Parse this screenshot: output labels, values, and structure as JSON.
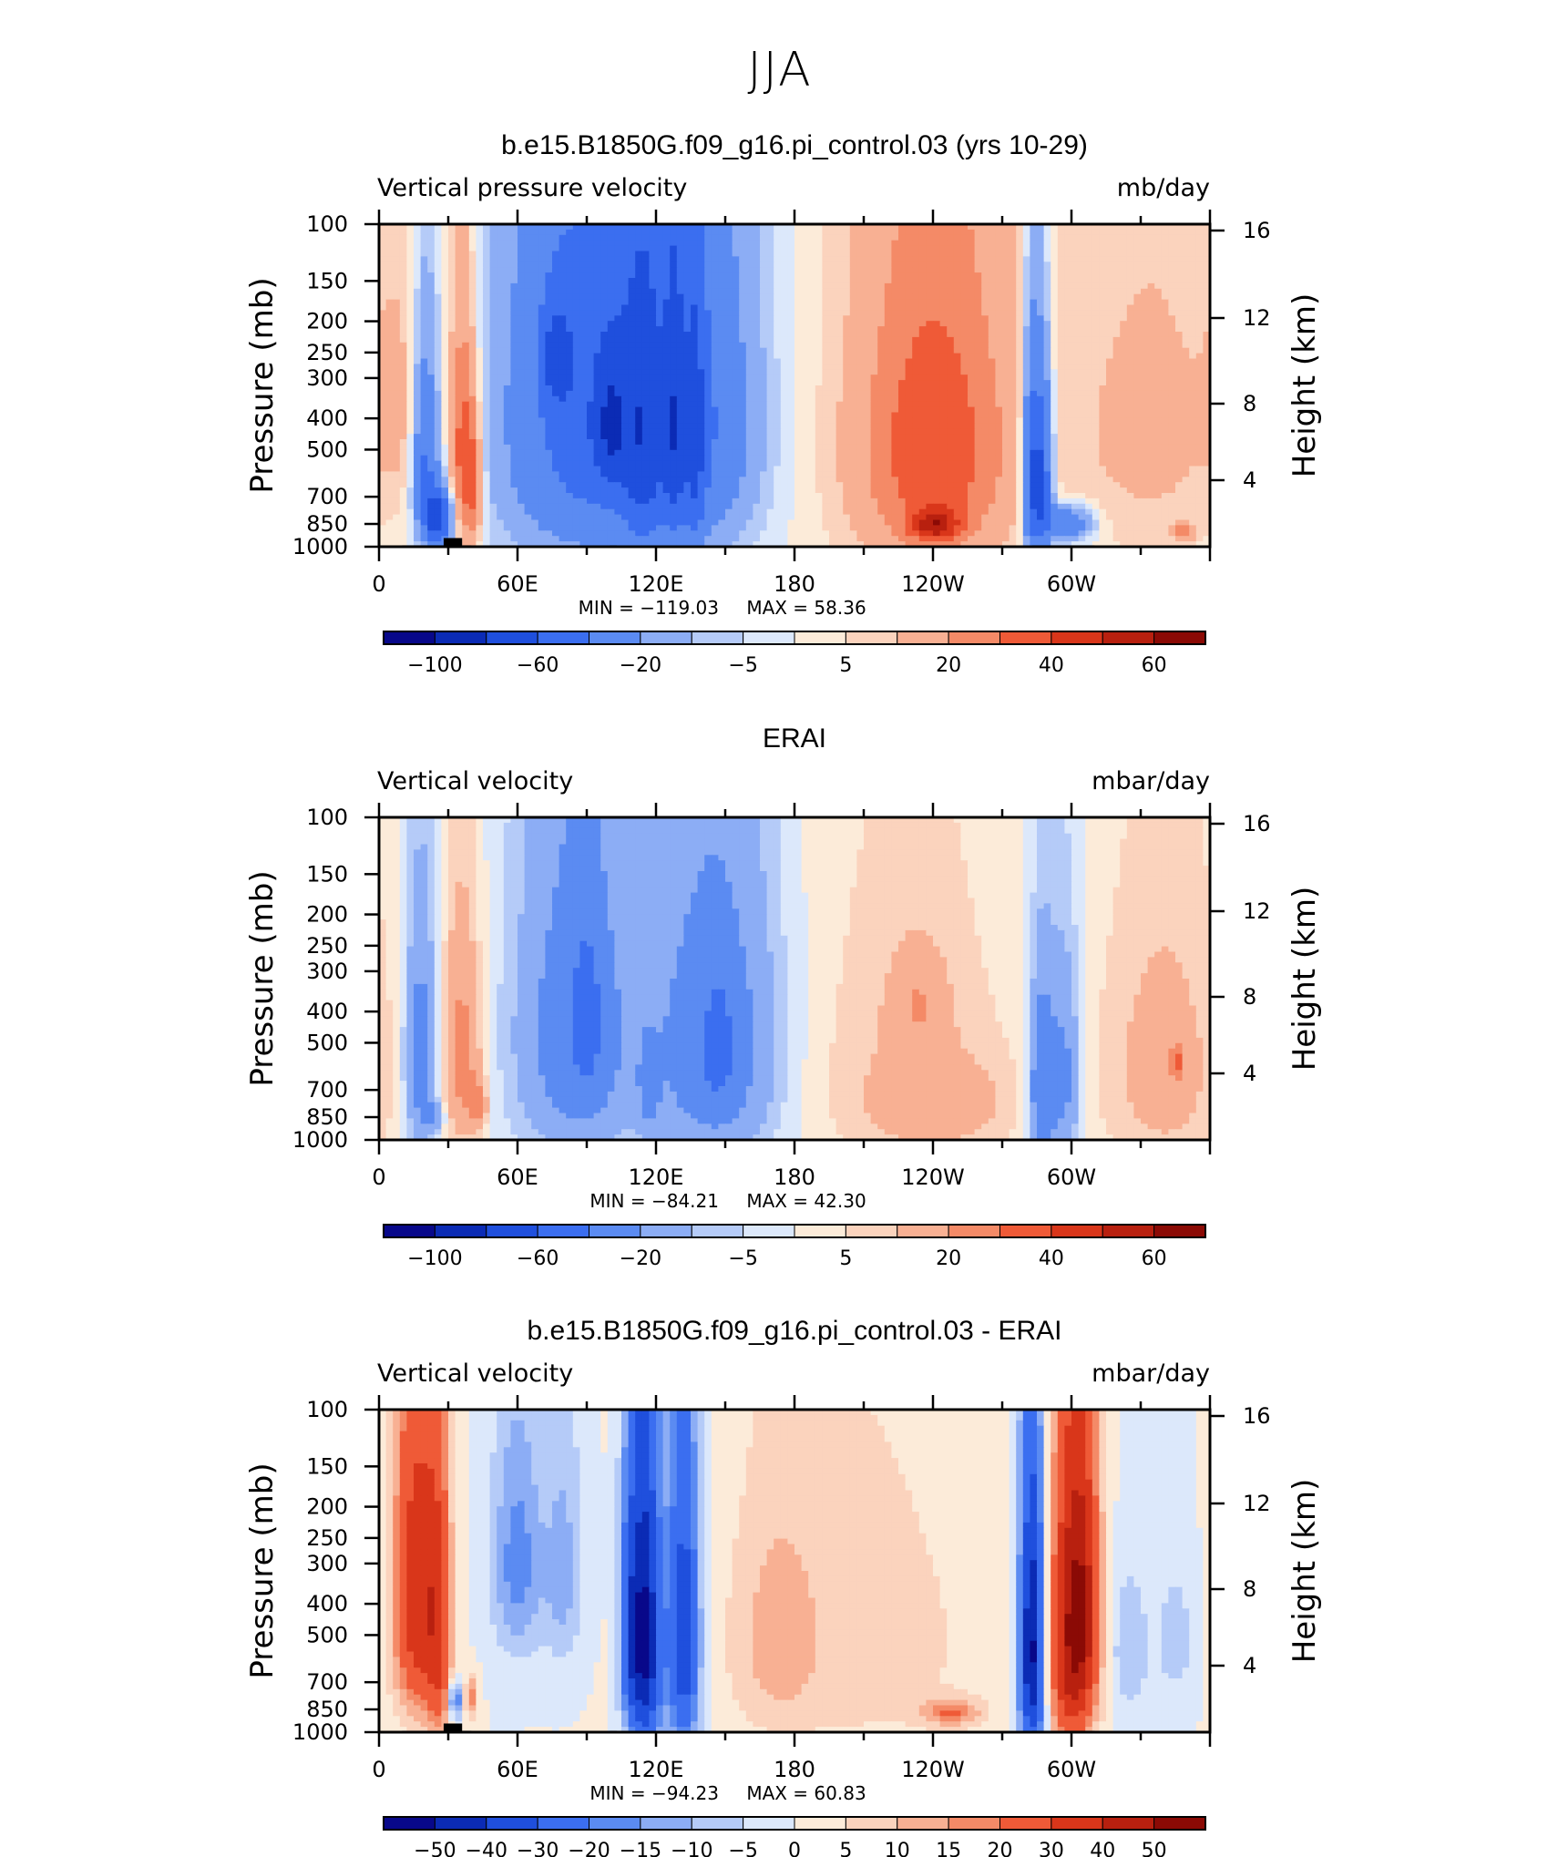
{
  "figure": {
    "suptitle": "JJA"
  },
  "palettes": {
    "diverging": [
      "#08088a",
      "#0b2bb5",
      "#1f4fdd",
      "#3b6ef0",
      "#5b8bf2",
      "#8cadf5",
      "#b5cbf8",
      "#dce8fb",
      "#fcebd9",
      "#fbd3bd",
      "#f8b093",
      "#f48a67",
      "#ef5a37",
      "#d9361a",
      "#b8200f",
      "#8b0a05"
    ]
  },
  "chart_data": [
    {
      "type": "heatmap",
      "title": "b.e15.B1850G.f09_g16.pi_control.03 (yrs 10-29)",
      "left_label": "Vertical pressure velocity",
      "right_label": "mb/day",
      "ylabel": "Pressure (mb)",
      "ylabel_right": "Height (km)",
      "x_ticks": [
        "0",
        "60E",
        "120E",
        "180",
        "120W",
        "60W"
      ],
      "y_ticks": [
        "100",
        "150",
        "200",
        "250",
        "300",
        "400",
        "500",
        "700",
        "850",
        "1000"
      ],
      "y2_ticks": [
        "16",
        "12",
        "8",
        "4"
      ],
      "min_label": "MIN = −119.03",
      "max_label": "MAX = 58.36",
      "colorbar_labels": [
        "−100",
        "−60",
        "−20",
        "−5",
        "5",
        "20",
        "40",
        "60"
      ],
      "fields": [
        {
          "lon": 20,
          "p": 550,
          "sx": 4,
          "sy": 280,
          "v": -45
        },
        {
          "lon": 26,
          "p": 820,
          "sx": 4,
          "sy": 120,
          "v": -70
        },
        {
          "lon": 36,
          "p": 500,
          "sx": 4,
          "sy": 300,
          "v": 35
        },
        {
          "lon": 41,
          "p": 640,
          "sx": 3,
          "sy": 240,
          "v": 25
        },
        {
          "lon": 90,
          "p": 400,
          "sx": 26,
          "sy": 420,
          "v": -50
        },
        {
          "lon": 77,
          "p": 260,
          "sx": 5,
          "sy": 70,
          "v": -35
        },
        {
          "lon": 100,
          "p": 420,
          "sx": 5,
          "sy": 150,
          "v": -30
        },
        {
          "lon": 114,
          "p": 480,
          "sx": 6,
          "sy": 420,
          "v": -25
        },
        {
          "lon": 135,
          "p": 420,
          "sx": 20,
          "sy": 380,
          "v": -40
        },
        {
          "lon": 128,
          "p": 450,
          "sx": 3,
          "sy": 400,
          "v": -25
        },
        {
          "lon": 137,
          "p": 480,
          "sx": 3,
          "sy": 400,
          "v": -25
        },
        {
          "lon": 240,
          "p": 480,
          "sx": 30,
          "sy": 520,
          "v": 22
        },
        {
          "lon": 240,
          "p": 500,
          "sx": 19,
          "sy": 300,
          "v": 18
        },
        {
          "lon": 241,
          "p": 860,
          "sx": 8,
          "sy": 70,
          "v": 35
        },
        {
          "lon": 283,
          "p": 600,
          "sx": 3,
          "sy": 320,
          "v": -60
        },
        {
          "lon": 288,
          "p": 600,
          "sx": 3,
          "sy": 280,
          "v": -50
        },
        {
          "lon": 298,
          "p": 850,
          "sx": 8,
          "sy": 80,
          "v": -40
        },
        {
          "lon": 335,
          "p": 430,
          "sx": 30,
          "sy": 440,
          "v": 12
        },
        {
          "lon": 349,
          "p": 900,
          "sx": 3,
          "sy": 35,
          "v": 25
        },
        {
          "lon": 10,
          "p": 360,
          "sx": 8,
          "sy": 200,
          "v": 8
        }
      ]
    },
    {
      "type": "heatmap",
      "title": "ERAI",
      "left_label": "Vertical velocity",
      "right_label": "mbar/day",
      "ylabel": "Pressure (mb)",
      "ylabel_right": "Height (km)",
      "x_ticks": [
        "0",
        "60E",
        "120E",
        "180",
        "120W",
        "60W"
      ],
      "y_ticks": [
        "100",
        "150",
        "200",
        "250",
        "300",
        "400",
        "500",
        "700",
        "850",
        "1000"
      ],
      "y2_ticks": [
        "16",
        "12",
        "8",
        "4"
      ],
      "min_label": "MIN = −84.21",
      "max_label": "MAX = 42.30",
      "colorbar_labels": [
        "−100",
        "−60",
        "−20",
        "−5",
        "5",
        "20",
        "40",
        "60"
      ],
      "fields": [
        {
          "lon": 18,
          "p": 560,
          "sx": 5,
          "sy": 320,
          "v": -30
        },
        {
          "lon": 24,
          "p": 850,
          "sx": 3,
          "sy": 60,
          "v": -20
        },
        {
          "lon": 36,
          "p": 550,
          "sx": 6,
          "sy": 300,
          "v": 25
        },
        {
          "lon": 43,
          "p": 780,
          "sx": 3,
          "sy": 100,
          "v": 18
        },
        {
          "lon": 85,
          "p": 480,
          "sx": 18,
          "sy": 400,
          "v": -30
        },
        {
          "lon": 90,
          "p": 420,
          "sx": 5,
          "sy": 180,
          "v": -25
        },
        {
          "lon": 145,
          "p": 520,
          "sx": 19,
          "sy": 400,
          "v": -32
        },
        {
          "lon": 147,
          "p": 520,
          "sx": 4,
          "sy": 130,
          "v": -30
        },
        {
          "lon": 117,
          "p": 700,
          "sx": 3,
          "sy": 150,
          "v": -15
        },
        {
          "lon": 230,
          "p": 600,
          "sx": 32,
          "sy": 500,
          "v": 10
        },
        {
          "lon": 234,
          "p": 380,
          "sx": 8,
          "sy": 90,
          "v": 12
        },
        {
          "lon": 245,
          "p": 780,
          "sx": 20,
          "sy": 160,
          "v": 10
        },
        {
          "lon": 287,
          "p": 700,
          "sx": 4,
          "sy": 330,
          "v": -35
        },
        {
          "lon": 297,
          "p": 650,
          "sx": 5,
          "sy": 330,
          "v": -25
        },
        {
          "lon": 340,
          "p": 600,
          "sx": 20,
          "sy": 420,
          "v": 14
        },
        {
          "lon": 346,
          "p": 580,
          "sx": 2,
          "sy": 60,
          "v": 20
        }
      ]
    },
    {
      "type": "heatmap",
      "title": "b.e15.B1850G.f09_g16.pi_control.03 - ERAI",
      "left_label": "Vertical velocity",
      "right_label": "mbar/day",
      "ylabel": "Pressure (mb)",
      "ylabel_right": "Height (km)",
      "x_ticks": [
        "0",
        "60E",
        "120E",
        "180",
        "120W",
        "60W"
      ],
      "y_ticks": [
        "100",
        "150",
        "200",
        "250",
        "300",
        "400",
        "500",
        "700",
        "850",
        "1000"
      ],
      "y2_ticks": [
        "16",
        "12",
        "8",
        "4"
      ],
      "min_label": "MIN = −94.23",
      "max_label": "MAX = 60.83",
      "colorbar_labels": [
        "−50",
        "−40",
        "−30",
        "−20",
        "−15",
        "−10",
        "−5",
        "0",
        "5",
        "10",
        "15",
        "20",
        "30",
        "40",
        "50"
      ],
      "colorbar_levels": [
        -50,
        -40,
        -30,
        -20,
        -15,
        -10,
        -5,
        0,
        5,
        10,
        15,
        20,
        30,
        40,
        50
      ],
      "fields": [
        {
          "lon": 16,
          "p": 380,
          "sx": 7,
          "sy": 320,
          "v": 38
        },
        {
          "lon": 26,
          "p": 520,
          "sx": 4,
          "sy": 380,
          "v": 25
        },
        {
          "lon": 33,
          "p": 800,
          "sx": 2,
          "sy": 80,
          "v": -25
        },
        {
          "lon": 40,
          "p": 780,
          "sx": 2,
          "sy": 80,
          "v": 20
        },
        {
          "lon": 60,
          "p": 300,
          "sx": 8,
          "sy": 180,
          "v": -18
        },
        {
          "lon": 80,
          "p": 320,
          "sx": 6,
          "sy": 200,
          "v": -12
        },
        {
          "lon": 115,
          "p": 520,
          "sx": 5,
          "sy": 400,
          "v": -55
        },
        {
          "lon": 132,
          "p": 520,
          "sx": 5,
          "sy": 400,
          "v": -40
        },
        {
          "lon": 108,
          "p": 480,
          "sx": 3,
          "sy": 280,
          "v": -18
        },
        {
          "lon": 205,
          "p": 520,
          "sx": 42,
          "sy": 440,
          "v": 8
        },
        {
          "lon": 172,
          "p": 520,
          "sx": 12,
          "sy": 280,
          "v": 8
        },
        {
          "lon": 248,
          "p": 870,
          "sx": 9,
          "sy": 60,
          "v": 18
        },
        {
          "lon": 283,
          "p": 560,
          "sx": 4,
          "sy": 400,
          "v": -55
        },
        {
          "lon": 300,
          "p": 520,
          "sx": 7,
          "sy": 400,
          "v": 45
        },
        {
          "lon": 306,
          "p": 400,
          "sx": 5,
          "sy": 260,
          "v": 20
        },
        {
          "lon": 325,
          "p": 560,
          "sx": 6,
          "sy": 200,
          "v": -10
        },
        {
          "lon": 345,
          "p": 520,
          "sx": 6,
          "sy": 180,
          "v": -8
        }
      ]
    }
  ]
}
